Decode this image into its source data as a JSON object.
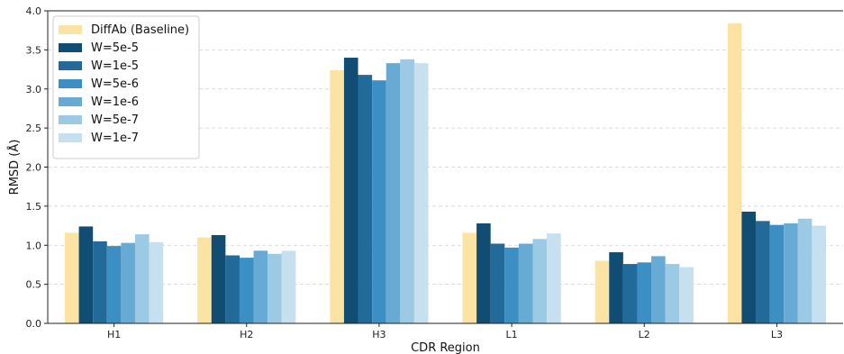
{
  "chart_data": {
    "type": "bar",
    "title": "",
    "xlabel": "CDR Region",
    "ylabel": "RMSD (Å)",
    "ylim": [
      0,
      4.0
    ],
    "yticks": [
      "0.0",
      "0.5",
      "1.0",
      "1.5",
      "2.0",
      "2.5",
      "3.0",
      "3.5",
      "4.0"
    ],
    "grid": "horizontal dashed",
    "legend_position": "top-left",
    "categories": [
      "H1",
      "H2",
      "H3",
      "L1",
      "L2",
      "L3"
    ],
    "series": [
      {
        "name": "DiffAb (Baseline)",
        "color": "#fbe3a4",
        "values": [
          1.16,
          1.1,
          3.24,
          1.16,
          0.8,
          3.84
        ]
      },
      {
        "name": "W=5e-5",
        "color": "#114c72",
        "values": [
          1.24,
          1.13,
          3.4,
          1.28,
          0.91,
          1.43
        ]
      },
      {
        "name": "W=1e-5",
        "color": "#216a9a",
        "values": [
          1.05,
          0.87,
          3.18,
          1.02,
          0.76,
          1.31
        ]
      },
      {
        "name": "W=5e-6",
        "color": "#3b8fc2",
        "values": [
          0.99,
          0.84,
          3.11,
          0.97,
          0.78,
          1.26
        ]
      },
      {
        "name": "W=1e-6",
        "color": "#67abd4",
        "values": [
          1.03,
          0.93,
          3.33,
          1.02,
          0.86,
          1.28
        ]
      },
      {
        "name": "W=5e-7",
        "color": "#9ccae4",
        "values": [
          1.14,
          0.89,
          3.38,
          1.08,
          0.76,
          1.34
        ]
      },
      {
        "name": "W=1e-7",
        "color": "#c6e0ef",
        "values": [
          1.04,
          0.93,
          3.33,
          1.15,
          0.72,
          1.25
        ]
      }
    ]
  }
}
